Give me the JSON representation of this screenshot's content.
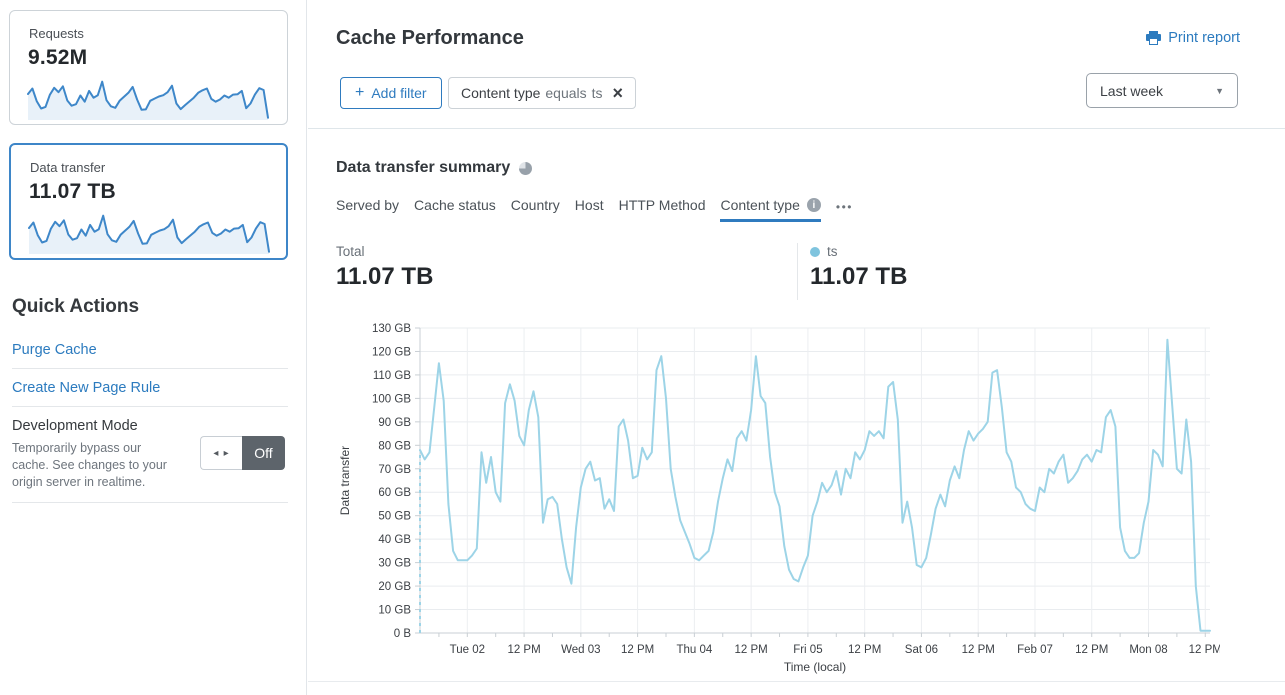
{
  "colors": {
    "accent": "#2f7bbf",
    "link": "#2c7bbf",
    "series_line": "#9dd4e7",
    "legend_dot": "#7fc4de",
    "sparkline": "#3e87c9",
    "sparkline_fill": "#e8f1f9",
    "toggle_off_bg": "#5d646b",
    "selected_card_border": "#3e86c8"
  },
  "icons": {
    "plus": "+",
    "close": "×",
    "chevron_down": "▼",
    "info": "i",
    "more": "•••",
    "toggle_arrows": "◂ ▸",
    "print": "printer-icon",
    "summary_pie": "pie-chart-icon"
  },
  "sidebar": {
    "cards": [
      {
        "label": "Requests",
        "value": "9.52M",
        "selected": false
      },
      {
        "label": "Data transfer",
        "value": "11.07 TB",
        "selected": true
      }
    ],
    "sparkline_values": [
      78,
      96,
      55,
      31,
      36,
      75,
      98,
      84,
      103,
      57,
      40,
      45,
      73,
      53,
      88,
      66,
      74,
      118,
      58,
      38,
      33,
      56,
      69,
      82,
      101,
      60,
      27,
      28,
      56,
      63,
      70,
      74,
      84,
      105,
      47,
      29,
      42,
      54,
      66,
      82,
      90,
      96,
      62,
      53,
      60,
      73,
      66,
      76,
      77,
      88,
      32,
      47,
      76,
      97,
      91,
      1
    ],
    "quick_actions": {
      "title": "Quick Actions",
      "links": [
        "Purge Cache",
        "Create New Page Rule"
      ],
      "development_mode": {
        "title": "Development Mode",
        "description": "Temporarily bypass our cache. See changes to your origin server in realtime.",
        "toggle_state": "Off"
      }
    }
  },
  "header": {
    "title": "Cache Performance",
    "print_label": "Print report",
    "add_filter_label": "Add filter",
    "filter_chip": {
      "field": "Content type",
      "operator": "equals",
      "value": "ts"
    },
    "time_range": "Last week"
  },
  "summary": {
    "title": "Data transfer summary",
    "tabs": [
      "Served by",
      "Cache status",
      "Country",
      "Host",
      "HTTP Method",
      "Content type"
    ],
    "active_tab": "Content type",
    "total_label": "Total",
    "total_value": "11.07 TB",
    "legend": {
      "name": "ts",
      "value": "11.07 TB",
      "color": "#7fc4de"
    }
  },
  "chart_data": {
    "type": "line",
    "title": "Data transfer summary",
    "xlabel": "Time (local)",
    "ylabel": "Data transfer",
    "unit": "GB",
    "ylim": [
      0,
      130
    ],
    "grid": true,
    "start_dashed": true,
    "y_ticks": [
      {
        "value": 0,
        "label": "0 B"
      },
      {
        "value": 10,
        "label": "10 GB"
      },
      {
        "value": 20,
        "label": "20 GB"
      },
      {
        "value": 30,
        "label": "30 GB"
      },
      {
        "value": 40,
        "label": "40 GB"
      },
      {
        "value": 50,
        "label": "50 GB"
      },
      {
        "value": 60,
        "label": "60 GB"
      },
      {
        "value": 70,
        "label": "70 GB"
      },
      {
        "value": 80,
        "label": "80 GB"
      },
      {
        "value": 90,
        "label": "90 GB"
      },
      {
        "value": 100,
        "label": "100 GB"
      },
      {
        "value": 110,
        "label": "110 GB"
      },
      {
        "value": 120,
        "label": "120 GB"
      },
      {
        "value": 130,
        "label": "130 GB"
      }
    ],
    "x_tick_labels": [
      "Tue 02",
      "12 PM",
      "Wed 03",
      "12 PM",
      "Thu 04",
      "12 PM",
      "Fri 05",
      "12 PM",
      "Sat 06",
      "12 PM",
      "Feb 07",
      "12 PM",
      "Mon 08",
      "12 PM"
    ],
    "x_tick_indices": [
      10,
      22,
      34,
      46,
      58,
      70,
      82,
      94,
      106,
      118,
      130,
      142,
      154,
      166
    ],
    "series": [
      {
        "name": "ts",
        "color": "#9dd4e7",
        "values": [
          78,
          74,
          77,
          96,
          115,
          99,
          55,
          35,
          31,
          31,
          31,
          33,
          36,
          77,
          64,
          75,
          60,
          56,
          98,
          106,
          99,
          84,
          80,
          95,
          103,
          92,
          47,
          57,
          58,
          55,
          40,
          28,
          21,
          45,
          62,
          70,
          73,
          65,
          66,
          53,
          57,
          52,
          88,
          91,
          82,
          66,
          67,
          79,
          74,
          77,
          112,
          118,
          100,
          70,
          58,
          48,
          43,
          38,
          32,
          31,
          33,
          35,
          43,
          56,
          66,
          74,
          69,
          83,
          86,
          82,
          95,
          118,
          101,
          98,
          75,
          60,
          54,
          37,
          27,
          23,
          22,
          28,
          33,
          50,
          56,
          64,
          60,
          63,
          69,
          59,
          70,
          66,
          77,
          74,
          78,
          86,
          84,
          86,
          83,
          105,
          107,
          91,
          47,
          56,
          45,
          29,
          28,
          32,
          42,
          53,
          59,
          54,
          65,
          71,
          66,
          78,
          86,
          82,
          85,
          87,
          90,
          111,
          112,
          96,
          77,
          73,
          62,
          60,
          55,
          53,
          52,
          62,
          60,
          70,
          68,
          73,
          76,
          64,
          66,
          69,
          74,
          76,
          73,
          78,
          77,
          92,
          95,
          88,
          45,
          35,
          32,
          32,
          34,
          47,
          56,
          78,
          76,
          71,
          125,
          97,
          70,
          68,
          91,
          73,
          20,
          1,
          1,
          1
        ]
      }
    ]
  }
}
